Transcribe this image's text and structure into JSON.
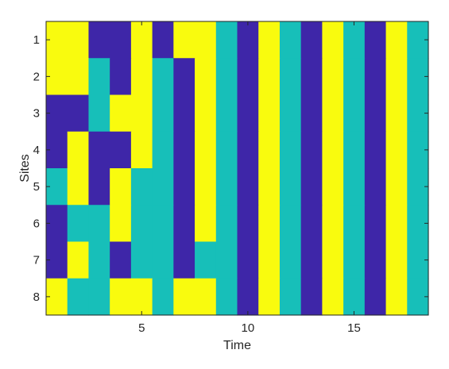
{
  "chart_data": {
    "type": "heatmap",
    "title": "",
    "xlabel": "Time",
    "ylabel": "Sites",
    "x": [
      1,
      2,
      3,
      4,
      5,
      6,
      7,
      8,
      9,
      10,
      11,
      12,
      13,
      14,
      15,
      16,
      17,
      18
    ],
    "y": [
      1,
      2,
      3,
      4,
      5,
      6,
      7,
      8
    ],
    "xticks": [
      5,
      10,
      15
    ],
    "yticks": [
      1,
      2,
      3,
      4,
      5,
      6,
      7,
      8
    ],
    "xlim": [
      0.5,
      18.5
    ],
    "ylim": [
      0.5,
      8.5
    ],
    "y_direction": "reverse",
    "grid": false,
    "legend": "none",
    "colormap": {
      "1": "#3e26a8",
      "2": "#17bfb9",
      "3": "#f9fb0e"
    },
    "values": [
      [
        3,
        3,
        1,
        1,
        3,
        1,
        3,
        3,
        2,
        1,
        3,
        2,
        1,
        3,
        2,
        1,
        3,
        2
      ],
      [
        3,
        3,
        2,
        1,
        3,
        2,
        1,
        3,
        2,
        1,
        3,
        2,
        1,
        3,
        2,
        1,
        3,
        2
      ],
      [
        1,
        1,
        2,
        3,
        3,
        2,
        1,
        3,
        2,
        1,
        3,
        2,
        1,
        3,
        2,
        1,
        3,
        2
      ],
      [
        1,
        3,
        1,
        1,
        3,
        2,
        1,
        3,
        2,
        1,
        3,
        2,
        1,
        3,
        2,
        1,
        3,
        2
      ],
      [
        2,
        3,
        1,
        3,
        2,
        2,
        1,
        3,
        2,
        1,
        3,
        2,
        1,
        3,
        2,
        1,
        3,
        2
      ],
      [
        1,
        2,
        2,
        3,
        2,
        2,
        1,
        3,
        2,
        1,
        3,
        2,
        1,
        3,
        2,
        1,
        3,
        2
      ],
      [
        1,
        3,
        2,
        1,
        2,
        2,
        1,
        2,
        2,
        1,
        3,
        2,
        1,
        3,
        2,
        1,
        3,
        2
      ],
      [
        3,
        2,
        2,
        3,
        3,
        2,
        3,
        3,
        2,
        1,
        3,
        2,
        1,
        3,
        2,
        1,
        3,
        2
      ]
    ]
  }
}
